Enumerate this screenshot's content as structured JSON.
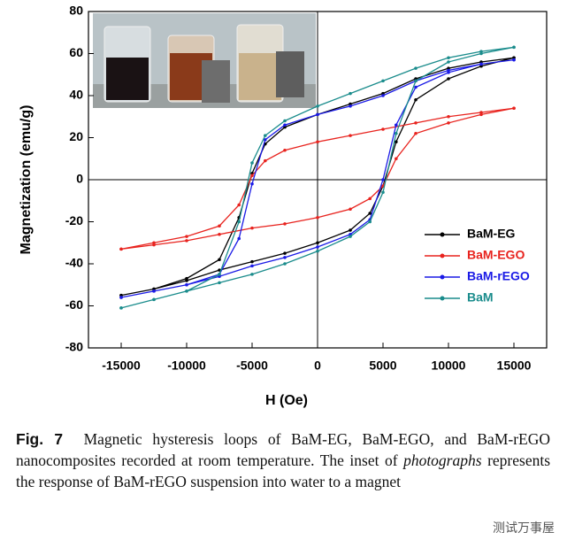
{
  "chart_data": {
    "type": "line",
    "xlabel": "H (Oe)",
    "ylabel": "Magnetization (emu/g)",
    "xlim": [
      -17500,
      17500
    ],
    "ylim": [
      -80,
      80
    ],
    "xticks": [
      -15000,
      -10000,
      -5000,
      0,
      5000,
      10000,
      15000
    ],
    "yticks": [
      -80,
      -60,
      -40,
      -20,
      0,
      20,
      40,
      60,
      80
    ],
    "legend": "right",
    "x": [
      -15000,
      -12500,
      -10000,
      -7500,
      -5000,
      -2500,
      0,
      2500,
      4000,
      5000,
      6000,
      7500,
      10000,
      12500,
      15000,
      15000,
      12500,
      10000,
      7500,
      5000,
      2500,
      0,
      -2500,
      -4000,
      -5000,
      -6000,
      -7500,
      -10000,
      -12500,
      -15000
    ],
    "series": [
      {
        "name": "BaM-EG",
        "color": "#000000",
        "values": [
          -55,
          -52,
          -48,
          -43,
          -39,
          -35,
          -30,
          -24,
          -16,
          -3,
          18,
          38,
          48,
          54,
          58,
          58,
          56,
          53,
          48,
          41,
          36,
          31,
          25,
          17,
          3,
          -18,
          -38,
          -47,
          -52,
          -55
        ]
      },
      {
        "name": "BaM-EGO",
        "color": "#e8231e",
        "values": [
          -33,
          -31,
          -29,
          -26,
          -23,
          -21,
          -18,
          -14,
          -9,
          -3,
          10,
          22,
          27,
          31,
          34,
          34,
          32,
          30,
          27,
          24,
          21,
          18,
          14,
          9,
          2,
          -12,
          -22,
          -27,
          -30,
          -33
        ]
      },
      {
        "name": "BaM-rEGO",
        "color": "#1a1ae6",
        "values": [
          -56,
          -53,
          -50,
          -46,
          -41,
          -37,
          -32,
          -26,
          -19,
          0,
          26,
          44,
          51,
          55,
          57,
          57,
          55,
          52,
          47,
          40,
          35,
          31,
          26,
          19,
          -2,
          -28,
          -45,
          -50,
          -53,
          -56
        ]
      },
      {
        "name": "BaM",
        "color": "#1a8c8c",
        "values": [
          -61,
          -57,
          -53,
          -49,
          -45,
          -40,
          -34,
          -27,
          -20,
          -6,
          22,
          47,
          56,
          60,
          63,
          63,
          61,
          58,
          53,
          47,
          41,
          35,
          28,
          21,
          8,
          -20,
          -45,
          -53,
          -57,
          -61
        ]
      }
    ]
  },
  "caption": {
    "label": "Fig. 7",
    "text_before": "Magnetic hysteresis loops of BaM-EG, BaM-EGO, and BaM-rEGO nanocomposites recorded at room temperature. The inset of",
    "emphasis": "photographs",
    "text_after": "represents the response of BaM-rEGO suspension into water to a magnet"
  },
  "watermark": "测试万事屋"
}
